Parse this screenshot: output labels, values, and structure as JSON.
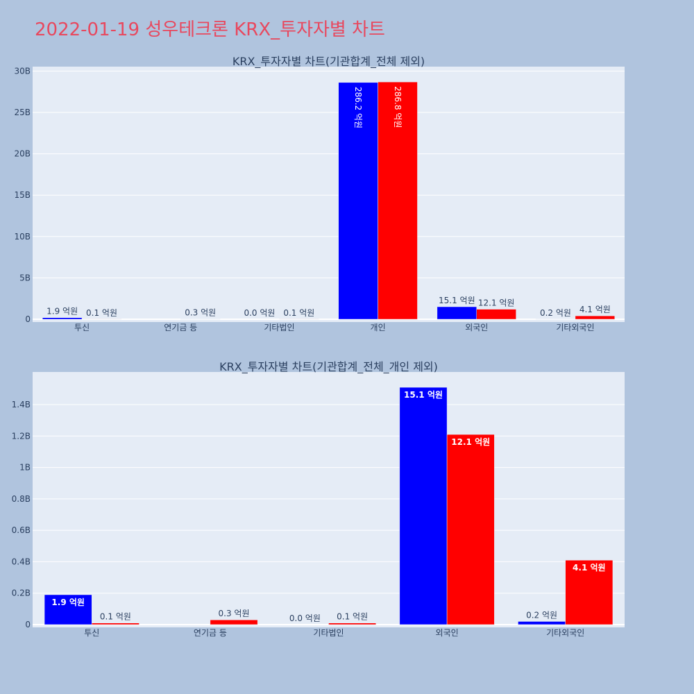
{
  "page_title": "2022-01-19 성우테크론 KRX_투자자별 차트",
  "colors": {
    "background": "#b0c4de",
    "plot_bg": "#e5ecf6",
    "title": "#e8485e",
    "series_buy": "#0000ff",
    "series_sell": "#ff0000"
  },
  "chart_data": [
    {
      "type": "bar",
      "title": "KRX_투자자별 차트(기관합계_전체 제외)",
      "categories": [
        "투신",
        "연기금 등",
        "기타법인",
        "개인",
        "외국인",
        "기타외국인"
      ],
      "series": [
        {
          "values": [
            190000000,
            0,
            0,
            28620000000,
            1510000000,
            20000000
          ],
          "labels": [
            "1.9 억원",
            "",
            "0.0 억원",
            "286.2 억원",
            "15.1 억원",
            "0.2 억원"
          ]
        },
        {
          "values": [
            10000000,
            30000000,
            10000000,
            28680000000,
            1210000000,
            410000000
          ],
          "labels": [
            "0.1 억원",
            "0.3 억원",
            "0.1 억원",
            "286.8 억원",
            "12.1 억원",
            "4.1 억원"
          ]
        }
      ],
      "ylim": [
        0,
        30200000000
      ],
      "yticks": [
        0,
        5000000000,
        10000000000,
        15000000000,
        20000000000,
        25000000000,
        30000000000
      ],
      "ytick_labels": [
        "0",
        "5B",
        "10B",
        "15B",
        "20B",
        "25B",
        "30B"
      ],
      "grid": true
    },
    {
      "type": "bar",
      "title": "KRX_투자자별 차트(기관합계_전체_개인 제외)",
      "categories": [
        "투신",
        "연기금 등",
        "기타법인",
        "외국인",
        "기타외국인"
      ],
      "series": [
        {
          "values": [
            190000000,
            0,
            0,
            1510000000,
            20000000
          ],
          "labels": [
            "1.9 억원",
            "",
            "0.0 억원",
            "15.1 억원",
            "0.2 억원"
          ]
        },
        {
          "values": [
            10000000,
            30000000,
            10000000,
            1210000000,
            410000000
          ],
          "labels": [
            "0.1 억원",
            "0.3 억원",
            "0.1 억원",
            "12.1 억원",
            "4.1 억원"
          ]
        }
      ],
      "ylim": [
        0,
        1590000000
      ],
      "yticks": [
        0,
        200000000,
        400000000,
        600000000,
        800000000,
        1000000000,
        1200000000,
        1400000000
      ],
      "ytick_labels": [
        "0",
        "0.2B",
        "0.4B",
        "0.6B",
        "0.8B",
        "1B",
        "1.2B",
        "1.4B"
      ],
      "grid": true
    }
  ]
}
